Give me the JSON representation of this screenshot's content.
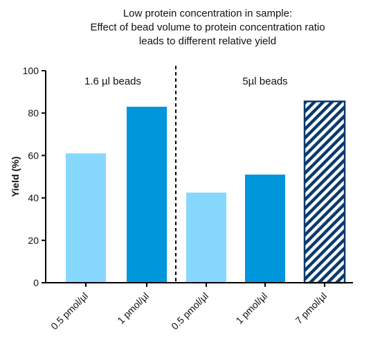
{
  "chart_data": {
    "type": "bar",
    "title_lines": [
      "Low protein concentration in sample:",
      "Effect of bead volume to protein concentration ratio",
      "leads to different relative yield"
    ],
    "ylabel": "Yield (%)",
    "xlabel": "",
    "ylim": [
      0,
      100
    ],
    "yticks": [
      0,
      20,
      40,
      60,
      80,
      100
    ],
    "grid": false,
    "categories": [
      "0.5 pmol/µl",
      "1 pmol/µl",
      "0.5 pmol/µl",
      "1 pmol/µl",
      "7 pmol/µl"
    ],
    "values": [
      61,
      83,
      42.5,
      51,
      85.5
    ],
    "bar_styles": [
      "light",
      "dark",
      "light",
      "dark",
      "hatched"
    ],
    "groups": [
      {
        "label": "1.6 µl beads",
        "categories": [
          0,
          1
        ]
      },
      {
        "label": "5µl beads",
        "categories": [
          2,
          3,
          4
        ]
      }
    ],
    "colors": {
      "light": "#87d8ff",
      "dark": "#0096dc",
      "hatch": "#0a3a6e",
      "axis": "#000000"
    }
  }
}
